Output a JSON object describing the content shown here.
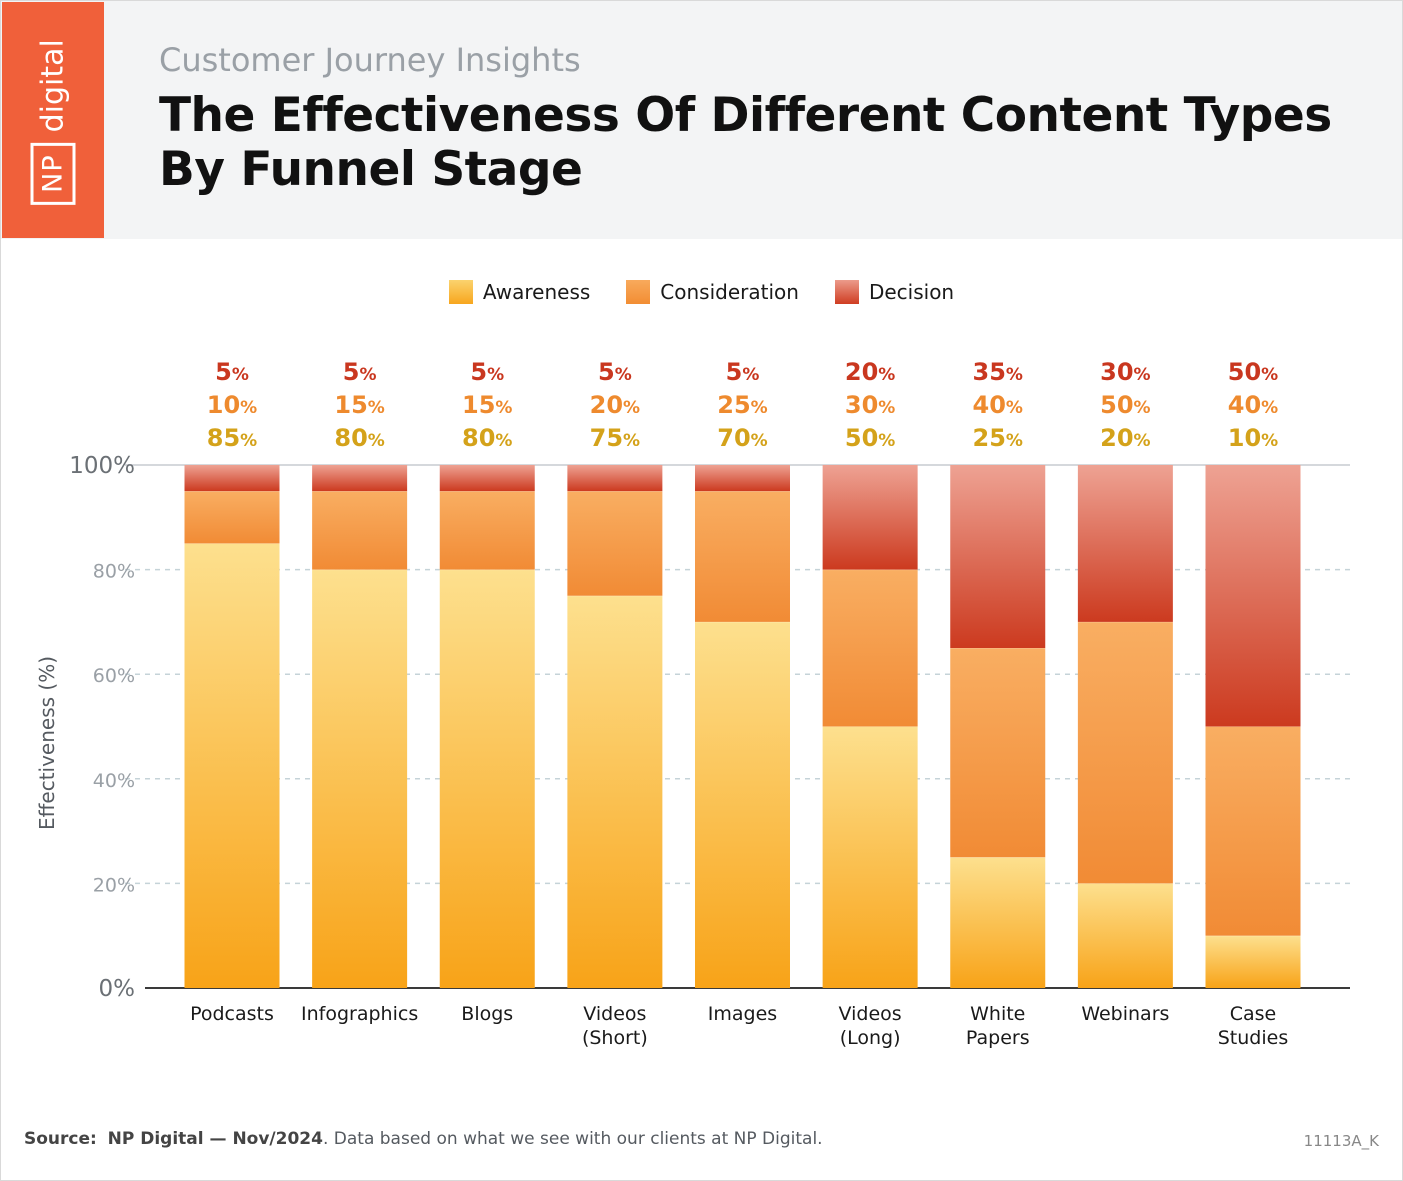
{
  "header": {
    "logo_box": "NP",
    "logo_word": "digital",
    "subtitle": "Customer Journey Insights",
    "title": "The Effectiveness Of Different Content Types By Funnel Stage"
  },
  "colors": {
    "brand": "#f0603a",
    "awareness": "#fbb03b",
    "consideration": "#f4933f",
    "decision": "#d9502f",
    "awareness_label": "#d4a21a",
    "consideration_label": "#ee8a2e",
    "decision_label": "#c9371f"
  },
  "chart_data": {
    "type": "bar",
    "stacked": true,
    "categories": [
      "Podcasts",
      "Infographics",
      "Blogs",
      "Videos (Short)",
      "Images",
      "Videos (Long)",
      "White Papers",
      "Webinars",
      "Case Studies"
    ],
    "series": [
      {
        "name": "Awareness",
        "values": [
          85,
          80,
          80,
          75,
          70,
          50,
          25,
          20,
          10
        ]
      },
      {
        "name": "Consideration",
        "values": [
          10,
          15,
          15,
          20,
          25,
          30,
          40,
          50,
          40
        ]
      },
      {
        "name": "Decision",
        "values": [
          5,
          5,
          5,
          5,
          5,
          20,
          35,
          30,
          50
        ]
      }
    ],
    "ylabel": "Effectiveness (%)",
    "ylim": [
      0,
      100
    ],
    "yticks": [
      "0%",
      "20%",
      "40%",
      "60%",
      "80%",
      "100%"
    ],
    "legend_position": "top-center",
    "grid": "dashed horizontal"
  },
  "footer": {
    "source_label": "Source:",
    "source_name": "NP Digital — Nov/2024",
    "source_note": ". Data based on what we see with our clients at NP Digital.",
    "code": "11113A_K"
  }
}
